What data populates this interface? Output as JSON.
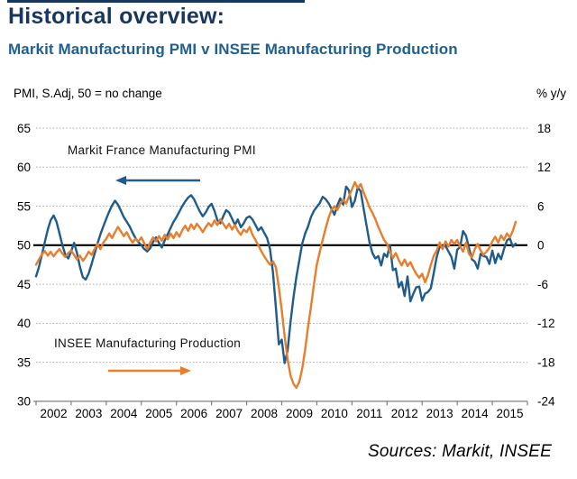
{
  "header": {
    "title": "Historical overview:",
    "subtitle": "Markit Manufacturing PMI v INSEE Manufacturing Production"
  },
  "footer": {
    "source": "Sources: Markit, INSEE"
  },
  "colors": {
    "title": "#17375E",
    "subtitle": "#1E6190",
    "pmi_line": "#1F5C8B",
    "insee_line": "#E87E2B",
    "gridline": "#A6A6A6",
    "reference_line": "#000000",
    "axis": "#7F7F7F",
    "text": "#000000"
  },
  "chart_data": {
    "type": "line",
    "title": "Markit Manufacturing PMI v INSEE Manufacturing Production",
    "left_axis": {
      "caption": "PMI, S.Adj, 50 = no change",
      "min": 30,
      "max": 65,
      "ticks": [
        65,
        60,
        55,
        50,
        45,
        40,
        35,
        30
      ]
    },
    "right_axis": {
      "caption": "% y/y",
      "min": -24,
      "max": 18,
      "ticks": [
        18,
        12,
        6,
        0,
        -6,
        -12,
        -18,
        -24
      ]
    },
    "x_categories": [
      "2002",
      "2003",
      "2004",
      "2005",
      "2006",
      "2007",
      "2008",
      "2009",
      "2010",
      "2011",
      "2012",
      "2013",
      "2014",
      "2015"
    ],
    "grid": "dotted-horizontal",
    "legend_position": "in-plot-annotations",
    "reference_line": {
      "axis": "left",
      "value": 50
    },
    "annotations": [
      {
        "label": "Markit France Manufacturing PMI",
        "arrow": "left",
        "color": "#1F5C8B"
      },
      {
        "label": "INSEE Manufacturing Production",
        "arrow": "right",
        "color": "#E87E2B"
      }
    ],
    "series": [
      {
        "name": "Markit France Manufacturing PMI",
        "axis": "left",
        "color": "#1F5C8B",
        "start": "2002-01",
        "frequency": "monthly",
        "values": [
          46.0,
          47.2,
          48.8,
          50.4,
          52.0,
          53.2,
          53.8,
          53.0,
          51.5,
          50.0,
          48.8,
          48.3,
          49.2,
          50.3,
          49.0,
          47.2,
          45.9,
          45.6,
          46.4,
          47.6,
          48.9,
          50.2,
          51.4,
          52.4,
          53.4,
          54.3,
          55.1,
          55.7,
          55.2,
          54.4,
          53.6,
          53.0,
          52.4,
          51.6,
          50.9,
          50.4,
          50.0,
          49.5,
          49.2,
          49.6,
          50.4,
          51.0,
          50.3,
          49.7,
          50.6,
          51.4,
          52.2,
          53.0,
          53.6,
          54.3,
          55.0,
          55.6,
          56.1,
          56.4,
          55.9,
          55.1,
          54.3,
          53.7,
          54.2,
          54.9,
          55.3,
          54.4,
          53.2,
          52.8,
          53.7,
          54.5,
          54.2,
          53.4,
          52.6,
          53.3,
          52.3,
          52.8,
          53.5,
          53.7,
          53.3,
          52.6,
          51.9,
          52.3,
          51.6,
          50.9,
          49.5,
          46.5,
          42.0,
          37.3,
          37.9,
          34.9,
          36.5,
          40.1,
          43.3,
          45.9,
          48.1,
          50.2,
          51.5,
          52.4,
          53.6,
          54.4,
          54.9,
          55.4,
          56.2,
          55.9,
          55.4,
          54.7,
          53.9,
          55.1,
          56.0,
          55.2,
          57.5,
          57.0,
          54.9,
          55.7,
          57.4,
          56.9,
          54.7,
          52.5,
          50.4,
          49.0,
          48.3,
          48.6,
          47.4,
          48.9,
          48.5,
          50.0,
          46.8,
          47.0,
          44.6,
          45.3,
          43.5,
          46.0,
          42.8,
          43.8,
          44.6,
          44.7,
          42.9,
          43.8,
          44.0,
          44.5,
          46.5,
          48.5,
          49.8,
          49.8,
          49.9,
          49.2,
          48.5,
          47.0,
          49.4,
          49.8,
          51.8,
          51.2,
          49.7,
          48.2,
          47.9,
          47.0,
          48.9,
          48.6,
          48.5,
          47.6,
          49.3,
          47.7,
          48.9,
          48.2,
          49.5,
          50.6,
          50.9,
          49.8,
          50.2
        ]
      },
      {
        "name": "INSEE Manufacturing Production",
        "axis": "right",
        "color": "#E87E2B",
        "start": "2002-01",
        "frequency": "monthly",
        "values": [
          -3.0,
          -2.2,
          -1.4,
          -0.9,
          -1.6,
          -1.0,
          -1.7,
          -1.1,
          -0.6,
          -1.3,
          -1.8,
          -1.2,
          -0.8,
          -1.5,
          -2.2,
          -1.6,
          -2.4,
          -1.8,
          -1.0,
          -1.5,
          -0.6,
          0.2,
          -0.6,
          0.4,
          1.0,
          1.8,
          1.1,
          2.0,
          2.8,
          2.1,
          1.4,
          2.0,
          1.1,
          0.4,
          1.0,
          0.6,
          1.2,
          0.3,
          -0.6,
          0.4,
          1.2,
          0.6,
          1.4,
          0.7,
          1.6,
          0.9,
          1.8,
          1.1,
          2.0,
          1.3,
          2.3,
          3.0,
          2.2,
          3.2,
          2.5,
          3.3,
          2.7,
          2.0,
          2.8,
          3.4,
          2.9,
          3.8,
          3.1,
          4.0,
          3.3,
          2.6,
          3.3,
          2.4,
          3.1,
          2.2,
          1.6,
          2.4,
          2.0,
          2.8,
          1.6,
          0.8,
          0.0,
          -0.9,
          -1.7,
          -2.4,
          -3.0,
          -2.5,
          -3.4,
          -6.5,
          -10.0,
          -14.0,
          -17.5,
          -20.0,
          -21.3,
          -21.9,
          -21.0,
          -19.0,
          -16.0,
          -12.5,
          -9.5,
          -6.0,
          -3.0,
          -1.0,
          0.8,
          2.6,
          4.2,
          5.4,
          6.0,
          5.4,
          6.4,
          7.0,
          6.4,
          7.5,
          8.6,
          9.7,
          8.8,
          9.4,
          8.1,
          7.0,
          5.8,
          5.0,
          4.0,
          2.8,
          1.8,
          0.8,
          0.2,
          -1.0,
          -2.0,
          -1.2,
          -2.3,
          -3.1,
          -2.2,
          -3.2,
          -2.6,
          -3.6,
          -4.4,
          -5.0,
          -4.4,
          -5.7,
          -4.6,
          -3.0,
          -1.6,
          -0.8,
          0.4,
          -0.6,
          0.6,
          -0.2,
          0.8,
          0.2,
          0.8,
          -0.2,
          -1.0,
          0.4,
          -1.3,
          -1.9,
          -0.6,
          0.2,
          -0.8,
          -1.5,
          -1.0,
          -0.4,
          0.6,
          1.3,
          0.4,
          1.5,
          0.8,
          1.8,
          1.2,
          2.2,
          3.6
        ]
      }
    ]
  }
}
